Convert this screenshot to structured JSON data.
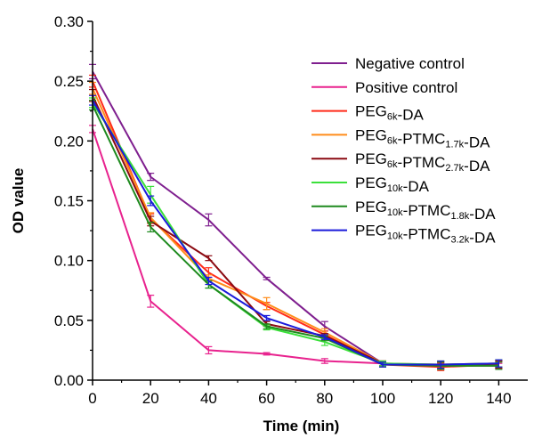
{
  "chart_data": {
    "type": "line",
    "xlabel": "Time (min)",
    "ylabel": "OD value",
    "xlim": [
      0,
      150
    ],
    "ylim": [
      0.0,
      0.3
    ],
    "x_ticks": [
      "0",
      "20",
      "40",
      "60",
      "80",
      "100",
      "120",
      "140"
    ],
    "y_ticks": [
      "0.00",
      "0.05",
      "0.10",
      "0.15",
      "0.20",
      "0.25",
      "0.30"
    ],
    "grid": false,
    "legend_position": "top-right",
    "x": [
      0,
      20,
      40,
      60,
      80,
      100,
      120,
      140
    ],
    "series": [
      {
        "name": "Negative control",
        "legend_parts": [
          {
            "t": "Negative control",
            "sub": false
          }
        ],
        "color": "#7f1f8f",
        "values": [
          0.258,
          0.17,
          0.134,
          0.085,
          0.045,
          0.014,
          0.012,
          0.013
        ],
        "errors": [
          0.006,
          0.003,
          0.005,
          0.001,
          0.004,
          0.002,
          0.003,
          0.003
        ]
      },
      {
        "name": "Positive control",
        "legend_parts": [
          {
            "t": "Positive control",
            "sub": false
          }
        ],
        "color": "#e8228e",
        "values": [
          0.21,
          0.066,
          0.025,
          0.022,
          0.016,
          0.014,
          0.012,
          0.012
        ],
        "errors": [
          0.003,
          0.005,
          0.003,
          0.001,
          0.002,
          0.002,
          0.002,
          0.002
        ]
      },
      {
        "name": "PEG6k-DA",
        "legend_parts": [
          {
            "t": "PEG",
            "sub": false
          },
          {
            "t": "6k",
            "sub": true
          },
          {
            "t": "-DA",
            "sub": false
          }
        ],
        "color": "#ff2b1a",
        "values": [
          0.25,
          0.135,
          0.09,
          0.062,
          0.038,
          0.013,
          0.011,
          0.013
        ],
        "errors": [
          0.005,
          0.004,
          0.004,
          0.003,
          0.003,
          0.002,
          0.003,
          0.003
        ]
      },
      {
        "name": "PEG6k-PTMC1.7k-DA",
        "legend_parts": [
          {
            "t": "PEG",
            "sub": false
          },
          {
            "t": "6k",
            "sub": true
          },
          {
            "t": "-PTMC",
            "sub": false
          },
          {
            "t": "1.7k",
            "sub": true
          },
          {
            "t": "-DA",
            "sub": false
          }
        ],
        "color": "#ff8c1a",
        "values": [
          0.244,
          0.136,
          0.085,
          0.064,
          0.04,
          0.014,
          0.013,
          0.014
        ],
        "errors": [
          0.005,
          0.004,
          0.003,
          0.005,
          0.003,
          0.002,
          0.003,
          0.003
        ]
      },
      {
        "name": "PEG6k-PTMC2.7k-DA",
        "legend_parts": [
          {
            "t": "PEG",
            "sub": false
          },
          {
            "t": "6k",
            "sub": true
          },
          {
            "t": "-PTMC",
            "sub": false
          },
          {
            "t": "2.7k",
            "sub": true
          },
          {
            "t": "-DA",
            "sub": false
          }
        ],
        "color": "#8b0a12",
        "values": [
          0.238,
          0.133,
          0.102,
          0.047,
          0.037,
          0.014,
          0.012,
          0.013
        ],
        "errors": [
          0.005,
          0.004,
          0.002,
          0.002,
          0.002,
          0.002,
          0.003,
          0.003
        ]
      },
      {
        "name": "PEG10k-DA",
        "legend_parts": [
          {
            "t": "PEG",
            "sub": false
          },
          {
            "t": "10k",
            "sub": true
          },
          {
            "t": "-DA",
            "sub": false
          }
        ],
        "color": "#3be03b",
        "values": [
          0.232,
          0.155,
          0.08,
          0.044,
          0.032,
          0.014,
          0.013,
          0.014
        ],
        "errors": [
          0.004,
          0.007,
          0.003,
          0.002,
          0.003,
          0.002,
          0.003,
          0.003
        ]
      },
      {
        "name": "PEG10k-PTMC1.8k-DA",
        "legend_parts": [
          {
            "t": "PEG",
            "sub": false
          },
          {
            "t": "10k",
            "sub": true
          },
          {
            "t": "-PTMC",
            "sub": false
          },
          {
            "t": "1.8k",
            "sub": true
          },
          {
            "t": "-DA",
            "sub": false
          }
        ],
        "color": "#1e8a1e",
        "values": [
          0.23,
          0.128,
          0.08,
          0.045,
          0.035,
          0.013,
          0.012,
          0.012
        ],
        "errors": [
          0.004,
          0.004,
          0.003,
          0.002,
          0.002,
          0.002,
          0.003,
          0.003
        ]
      },
      {
        "name": "PEG10k-PTMC3.2k-DA",
        "legend_parts": [
          {
            "t": "PEG",
            "sub": false
          },
          {
            "t": "10k",
            "sub": true
          },
          {
            "t": "-PTMC",
            "sub": false
          },
          {
            "t": "3.2k",
            "sub": true
          },
          {
            "t": "-DA",
            "sub": false
          }
        ],
        "color": "#1a1adb",
        "values": [
          0.234,
          0.15,
          0.083,
          0.052,
          0.036,
          0.013,
          0.013,
          0.014
        ],
        "errors": [
          0.004,
          0.004,
          0.003,
          0.002,
          0.002,
          0.002,
          0.003,
          0.003
        ]
      }
    ]
  }
}
